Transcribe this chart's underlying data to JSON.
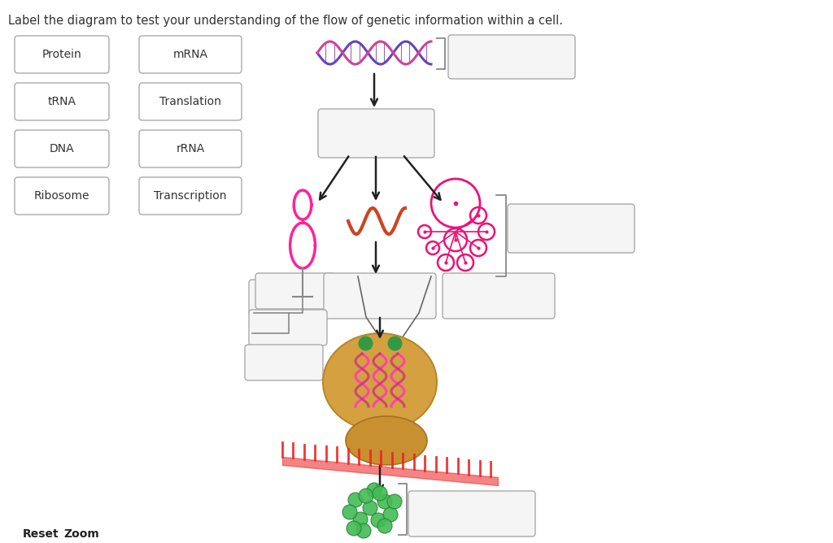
{
  "title": "Label the diagram to test your understanding of the flow of genetic information within a cell.",
  "title_fontsize": 10.5,
  "bg_color": "#ffffff",
  "box_color": "#ffffff",
  "box_edge": "#aaaaaa",
  "text_color": "#333333",
  "left_labels": [
    "Protein",
    "tRNA",
    "DNA",
    "Ribosome"
  ],
  "right_labels": [
    "mRNA",
    "Translation",
    "rRNA",
    "Transcription"
  ],
  "reset_zoom_text": [
    "Reset",
    "Zoom"
  ],
  "answer_box_color": "#f0f0f0",
  "answer_box_edge": "#aaaaaa",
  "fig_w": 10.24,
  "fig_h": 6.68,
  "dpi": 100
}
